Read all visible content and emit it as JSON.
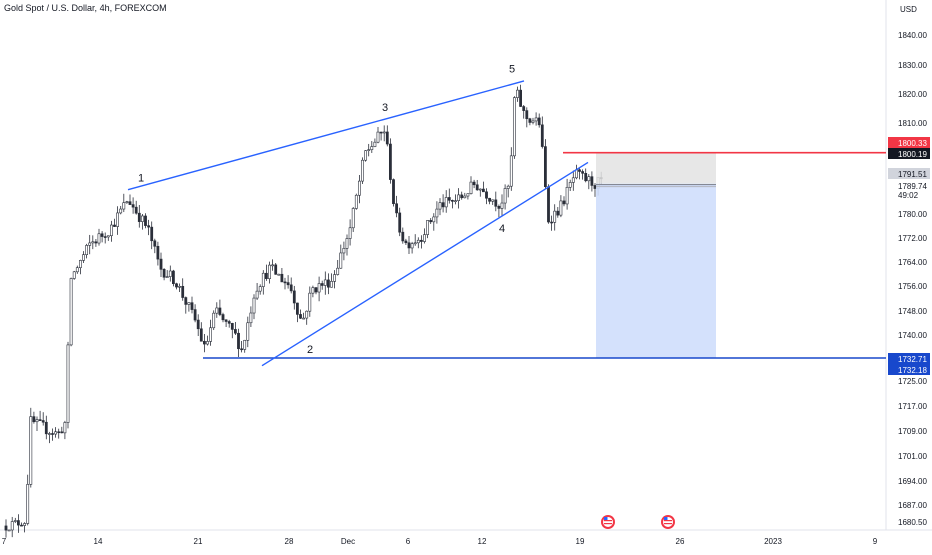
{
  "header": {
    "symbol": "Gold Spot / U.S. Dollar",
    "timeframe": "4h",
    "exchange": "FOREXCOM"
  },
  "axis": {
    "currency": "USD",
    "countdown": "49:02"
  },
  "colors": {
    "up_candle": "#2a2e39",
    "trendline": "#2962ff",
    "resistance": "#f23645",
    "stop_zone": "#e3e3e3",
    "target_zone": "#cfdefc"
  },
  "chart_data": {
    "type": "candlestick",
    "y_unit": "USD",
    "ylim": [
      1678,
      1850
    ],
    "y_ticks": [
      1840.0,
      1830.0,
      1820.0,
      1810.0,
      1780.0,
      1772.0,
      1764.0,
      1756.0,
      1748.0,
      1740.0,
      1725.0,
      1717.0,
      1709.0,
      1701.0,
      1694.0,
      1687.0,
      1680.5
    ],
    "x_ticks": [
      "7",
      "14",
      "21",
      "28",
      "Dec",
      "6",
      "12",
      "19",
      "26",
      "2023",
      "9"
    ],
    "wave_labels": [
      {
        "label": "1",
        "price": 1788
      },
      {
        "label": "2",
        "price": 1738
      },
      {
        "label": "3",
        "price": 1812
      },
      {
        "label": "4",
        "price": 1778
      },
      {
        "label": "5",
        "price": 1826
      }
    ],
    "price_labels": [
      {
        "price": "1800.33",
        "style": "red"
      },
      {
        "price": "1800.19",
        "style": "dark"
      },
      {
        "price": "1791.51",
        "style": "light"
      },
      {
        "price": "1789.74",
        "style": "plain"
      },
      {
        "price": "1732.71",
        "style": "blue"
      },
      {
        "price": "1732.18",
        "style": "blue"
      }
    ],
    "levels": {
      "resistance": 1800.2,
      "support": 1732.5,
      "entry": 1790.0,
      "stop": 1800.2,
      "target": 1732.5
    }
  }
}
